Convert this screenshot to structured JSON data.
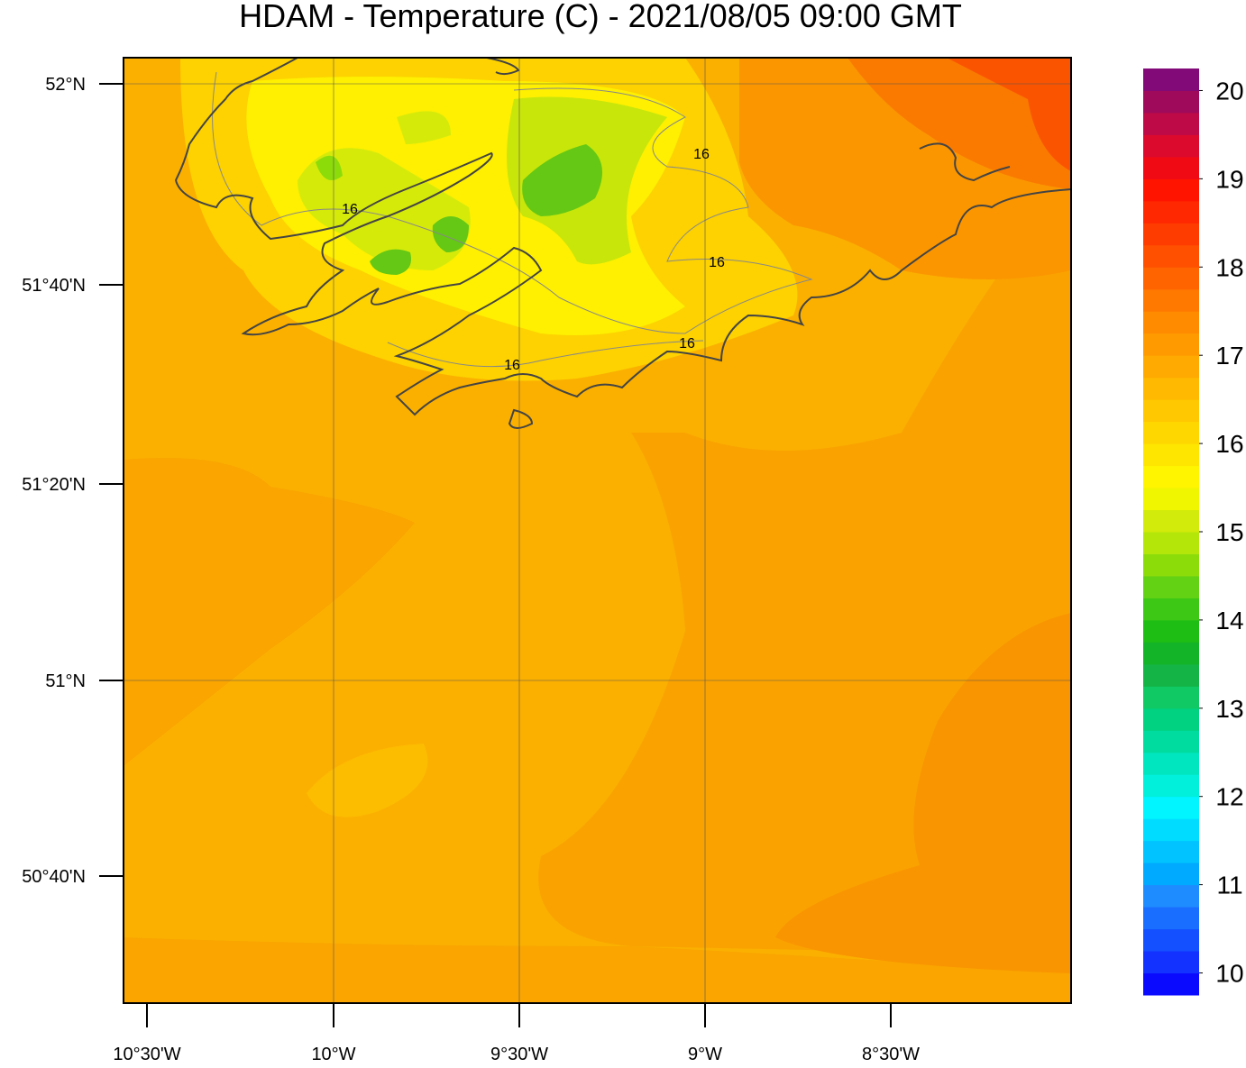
{
  "title": "HDAM - Temperature (C)  -  2021/08/05  09:00 GMT",
  "map": {
    "lat_labels": [
      "52°N",
      "51°40'N",
      "51°20'N",
      "51°N",
      "50°40'N"
    ],
    "lon_labels": [
      "10°30'W",
      "10°W",
      "9°30'W",
      "9°W",
      "8°30'W"
    ],
    "contour_labels": [
      "16",
      "16",
      "16",
      "16",
      "16"
    ]
  },
  "colorbar": {
    "lim": [
      9.75,
      20.25
    ],
    "ticks": [
      10,
      11,
      12,
      13,
      14,
      15,
      16,
      17,
      18,
      19,
      20
    ],
    "colors": [
      "#0a0aff",
      "#1432ff",
      "#1450ff",
      "#1a6eff",
      "#1e8cff",
      "#00aaff",
      "#00c3ff",
      "#00dcff",
      "#00f5ff",
      "#00f0dc",
      "#00e6be",
      "#00dca0",
      "#00d282",
      "#10c864",
      "#14b446",
      "#14b428",
      "#1ebe14",
      "#3cc814",
      "#64d214",
      "#8cdc0a",
      "#b4e60a",
      "#d2eb0a",
      "#f0f500",
      "#fff500",
      "#ffe600",
      "#ffd700",
      "#ffc800",
      "#ffb900",
      "#ffaa00",
      "#ff9b00",
      "#ff8c00",
      "#ff7800",
      "#ff6400",
      "#ff5000",
      "#ff3c00",
      "#ff2800",
      "#ff1400",
      "#f00a14",
      "#dc0a2d",
      "#be0a46",
      "#a00a5a",
      "#820a78"
    ]
  }
}
